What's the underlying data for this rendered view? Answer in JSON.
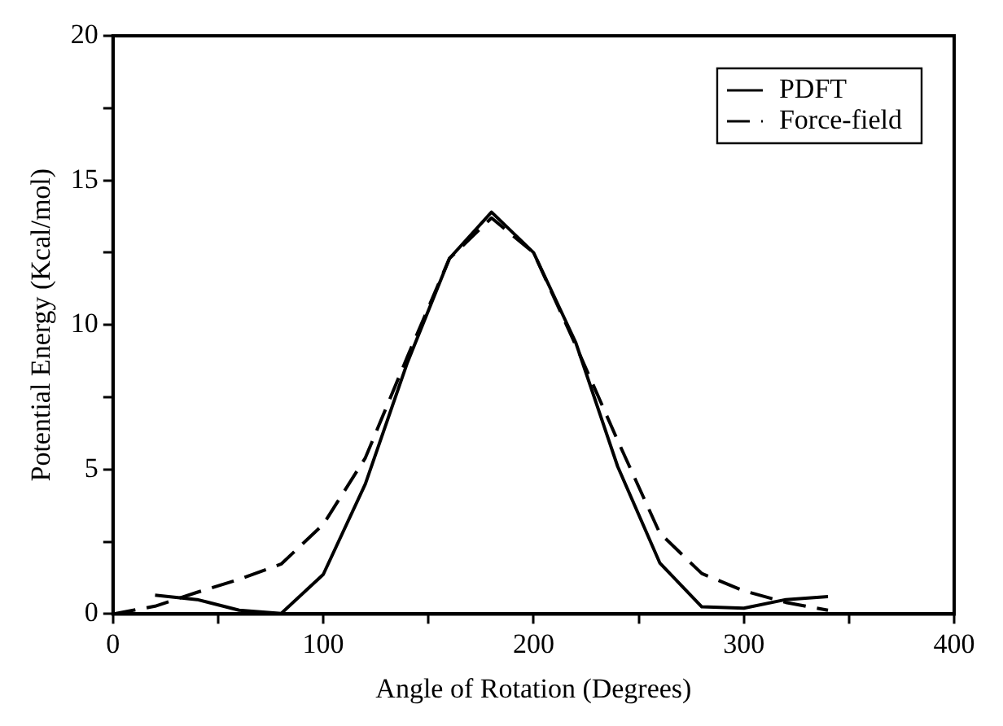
{
  "chart_data": {
    "type": "line",
    "xlabel": "Angle of Rotation (Degrees)",
    "ylabel": "Potential Energy (Kcal/mol)",
    "xlim": [
      0,
      400
    ],
    "xticks": [
      0,
      {
        "value": 50,
        "label": null
      },
      100,
      {
        "value": 150,
        "label": null
      },
      200,
      {
        "value": 250,
        "label": null
      },
      300,
      {
        "value": 350,
        "label": null
      },
      400
    ],
    "ylim": [
      0,
      20
    ],
    "yticks": [
      0,
      {
        "value": 2.5,
        "label": null
      },
      5,
      {
        "value": 7.5,
        "label": null
      },
      10,
      {
        "value": 12.5,
        "label": null
      },
      15,
      {
        "value": 17.5,
        "label": null
      },
      20
    ],
    "grid": false,
    "legend": "top right",
    "marker": "none",
    "series": [
      {
        "name": "PDFT",
        "color": "#000000",
        "line_style": "solid",
        "x": [
          20,
          40,
          60,
          80,
          100,
          120,
          140,
          160,
          180,
          200,
          220,
          240,
          260,
          280,
          300,
          320,
          340
        ],
        "values": [
          0.65,
          0.5,
          0.13,
          0.02,
          1.37,
          4.5,
          8.7,
          12.3,
          13.9,
          12.5,
          9.4,
          5.1,
          1.77,
          0.25,
          0.2,
          0.5,
          0.6
        ]
      },
      {
        "name": "Force-field",
        "color": "#000000",
        "line_style": "dashed",
        "x": [
          0,
          20,
          40,
          60,
          80,
          100,
          120,
          140,
          160,
          180,
          200,
          220,
          240,
          260,
          280,
          300,
          320,
          340
        ],
        "values": [
          0,
          0.27,
          0.75,
          1.2,
          1.73,
          3.1,
          5.4,
          8.9,
          12.3,
          13.7,
          12.5,
          9.3,
          6.0,
          2.8,
          1.4,
          0.8,
          0.4,
          0.13
        ]
      }
    ]
  }
}
